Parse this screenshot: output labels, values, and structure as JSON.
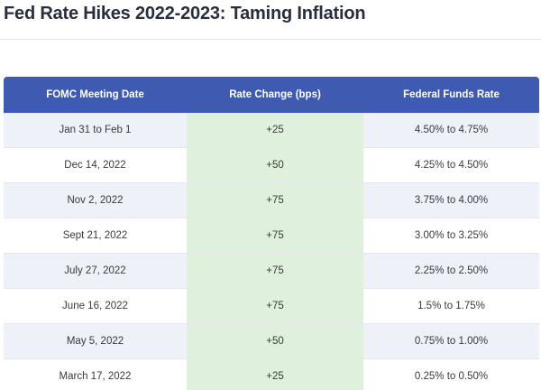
{
  "title": "Fed Rate Hikes 2022-2023: Taming Inflation",
  "table": {
    "headers": [
      "FOMC Meeting Date",
      "Rate Change (bps)",
      "Federal Funds Rate"
    ],
    "rows": [
      [
        "Jan 31 to Feb 1",
        "+25",
        "4.50% to 4.75%"
      ],
      [
        "Dec 14, 2022",
        "+50",
        "4.25% to 4.50%"
      ],
      [
        "Nov 2, 2022",
        "+75",
        "3.75% to 4.00%"
      ],
      [
        "Sept 21, 2022",
        "+75",
        "3.00% to 3.25%"
      ],
      [
        "July 27, 2022",
        "+75",
        "2.25% to 2.50%"
      ],
      [
        "June 16, 2022",
        "+75",
        "1.5% to 1.75%"
      ],
      [
        "May 5, 2022",
        "+50",
        "0.75% to 1.00%"
      ],
      [
        "March 17, 2022",
        "+25",
        "0.25% to 0.50%"
      ]
    ]
  },
  "colors": {
    "header_bg": "#3f5bb1",
    "stripe_bg": "#eef1f8",
    "highlight_column_bg": "#dff0dc"
  }
}
